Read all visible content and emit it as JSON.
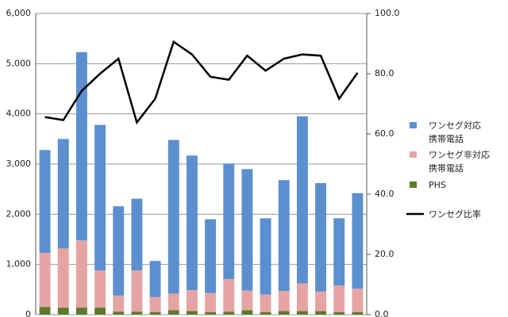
{
  "chart_data": {
    "type": "bar",
    "stacked": true,
    "categories": [
      null,
      null,
      null,
      null,
      null,
      null,
      null,
      null,
      null,
      null,
      null,
      null,
      null,
      null,
      null,
      null,
      null,
      null
    ],
    "series": [
      {
        "name": "PHS",
        "color": "#5c7a2c",
        "values": [
          150,
          140,
          140,
          140,
          60,
          60,
          50,
          90,
          70,
          50,
          60,
          90,
          50,
          70,
          70,
          70,
          50,
          50
        ]
      },
      {
        "name": "ワンセグ非対応\n携帯電話",
        "color": "#e6a3a3",
        "values": [
          1080,
          1180,
          1340,
          740,
          320,
          820,
          300,
          330,
          420,
          380,
          650,
          390,
          350,
          400,
          550,
          390,
          530,
          470
        ]
      },
      {
        "name": "ワンセグ対応\n携帯電話",
        "color": "#5b8fcf",
        "values": [
          2050,
          2180,
          3750,
          2900,
          1780,
          1430,
          720,
          3060,
          2680,
          1470,
          2300,
          2420,
          1520,
          2210,
          3330,
          2160,
          1340,
          1900
        ]
      },
      {
        "name": "ワンセグ比率",
        "type": "line",
        "axis": "y2",
        "color": "#000000",
        "values": [
          65.6,
          64.6,
          74.3,
          80,
          85,
          63.8,
          71.7,
          90.6,
          86.4,
          79,
          78,
          86,
          81,
          85,
          86.4,
          86,
          71.7,
          80.3
        ]
      }
    ],
    "legend_order": [
      2,
      1,
      0,
      3
    ],
    "ylim": [
      0,
      6000
    ],
    "yticks": [
      {
        "value": 0,
        "label": "0"
      },
      {
        "value": 1000,
        "label": "1,000"
      },
      {
        "value": 2000,
        "label": "2,000"
      },
      {
        "value": 3000,
        "label": "3,000"
      },
      {
        "value": 4000,
        "label": "4,000"
      },
      {
        "value": 5000,
        "label": "5,000"
      },
      {
        "value": 6000,
        "label": "6,000"
      }
    ],
    "y2lim": [
      0,
      100
    ],
    "y2ticks": [
      {
        "value": 0,
        "label": "0.0"
      },
      {
        "value": 20,
        "label": "20.0"
      },
      {
        "value": 40,
        "label": "40.0"
      },
      {
        "value": 60,
        "label": "60.0"
      },
      {
        "value": 80,
        "label": "80.0"
      },
      {
        "value": 100,
        "label": "100.0"
      }
    ],
    "grid": true,
    "legend": "right"
  }
}
